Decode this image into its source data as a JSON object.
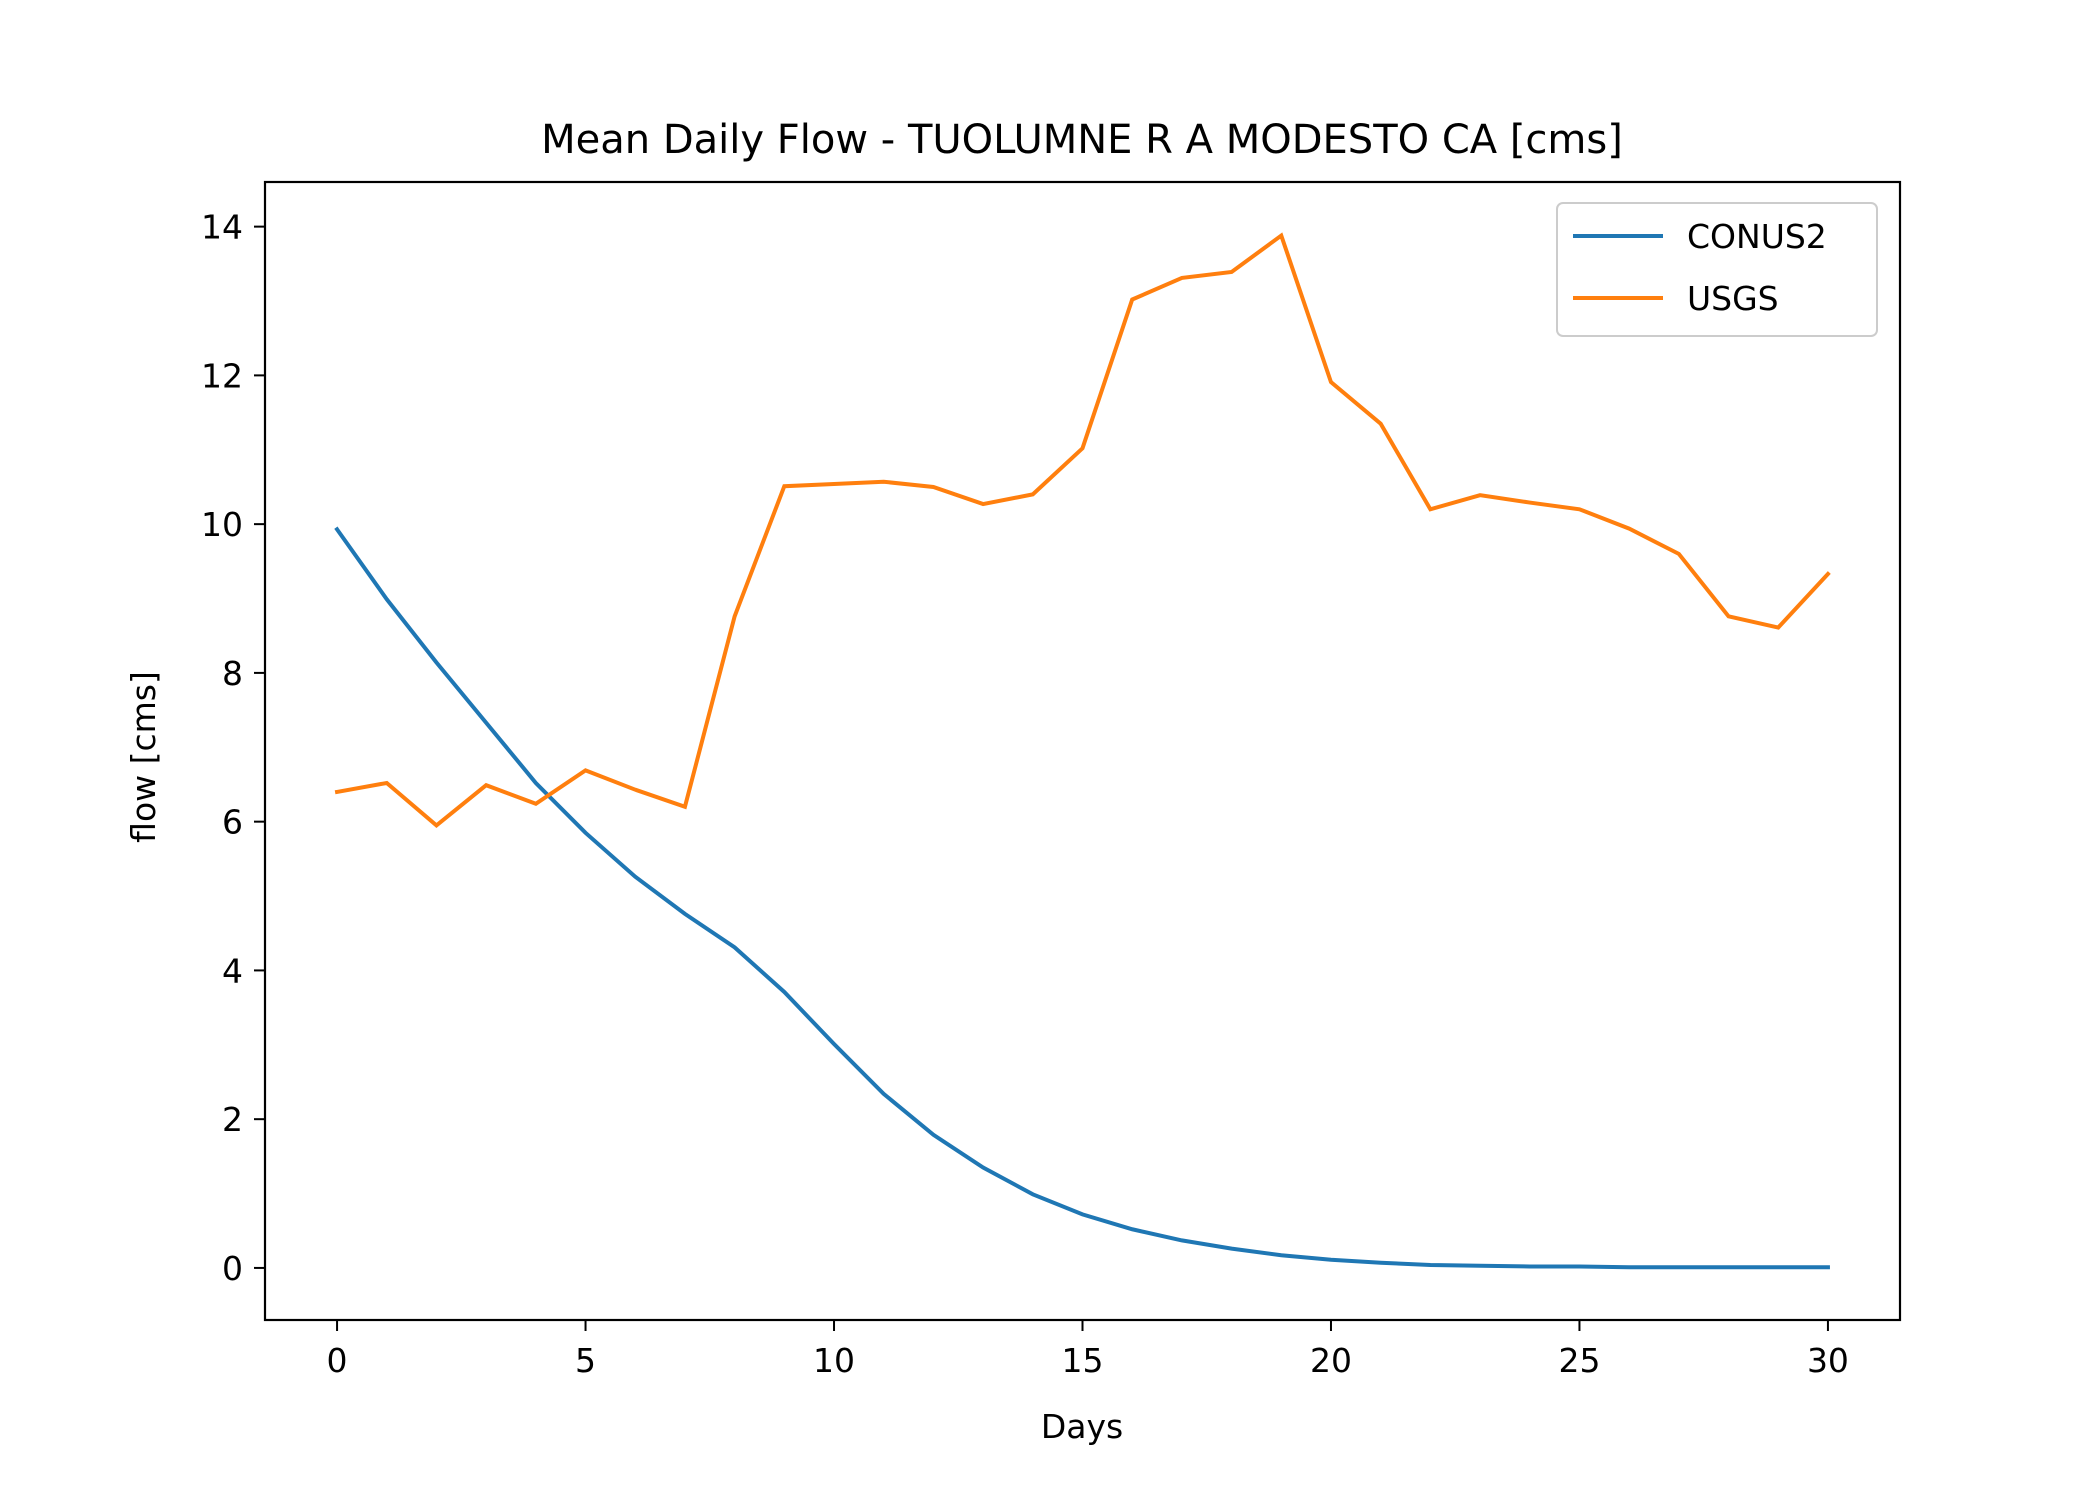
{
  "chart_data": {
    "type": "line",
    "title": "Mean Daily Flow - TUOLUMNE R A MODESTO CA [cms]",
    "xlabel": "Days",
    "ylabel": "flow [cms]",
    "xlim": [
      -1.45,
      31.45
    ],
    "ylim": [
      -0.7,
      14.6
    ],
    "xticks": [
      0,
      5,
      10,
      15,
      20,
      25,
      30
    ],
    "xtick_labels": [
      "0",
      "5",
      "10",
      "15",
      "20",
      "25",
      "30"
    ],
    "yticks": [
      0,
      2,
      4,
      6,
      8,
      10,
      12,
      14
    ],
    "ytick_labels": [
      "0",
      "2",
      "4",
      "6",
      "8",
      "10",
      "12",
      "14"
    ],
    "grid": false,
    "legend_position": "top-right",
    "x": [
      0,
      1,
      2,
      3,
      4,
      5,
      6,
      7,
      8,
      9,
      10,
      11,
      12,
      13,
      14,
      15,
      16,
      17,
      18,
      19,
      20,
      21,
      22,
      23,
      24,
      25,
      26,
      27,
      28,
      29,
      30
    ],
    "series": [
      {
        "name": "CONUS2",
        "color": "#1f77b4",
        "values": [
          9.93,
          8.99,
          8.14,
          7.33,
          6.52,
          5.85,
          5.26,
          4.76,
          4.31,
          3.71,
          3.01,
          2.34,
          1.79,
          1.35,
          0.99,
          0.72,
          0.52,
          0.37,
          0.26,
          0.17,
          0.11,
          0.07,
          0.04,
          0.03,
          0.02,
          0.02,
          0.01,
          0.01,
          0.01,
          0.01,
          0.01
        ]
      },
      {
        "name": "USGS",
        "color": "#ff7f0e",
        "values": [
          6.4,
          6.52,
          5.95,
          6.49,
          6.24,
          6.69,
          6.43,
          6.2,
          8.76,
          10.51,
          10.54,
          10.57,
          10.5,
          10.27,
          10.4,
          11.02,
          13.02,
          13.31,
          13.39,
          13.88,
          11.91,
          11.35,
          10.2,
          10.39,
          10.29,
          10.2,
          9.94,
          9.6,
          8.76,
          8.61,
          9.33
        ]
      }
    ]
  }
}
